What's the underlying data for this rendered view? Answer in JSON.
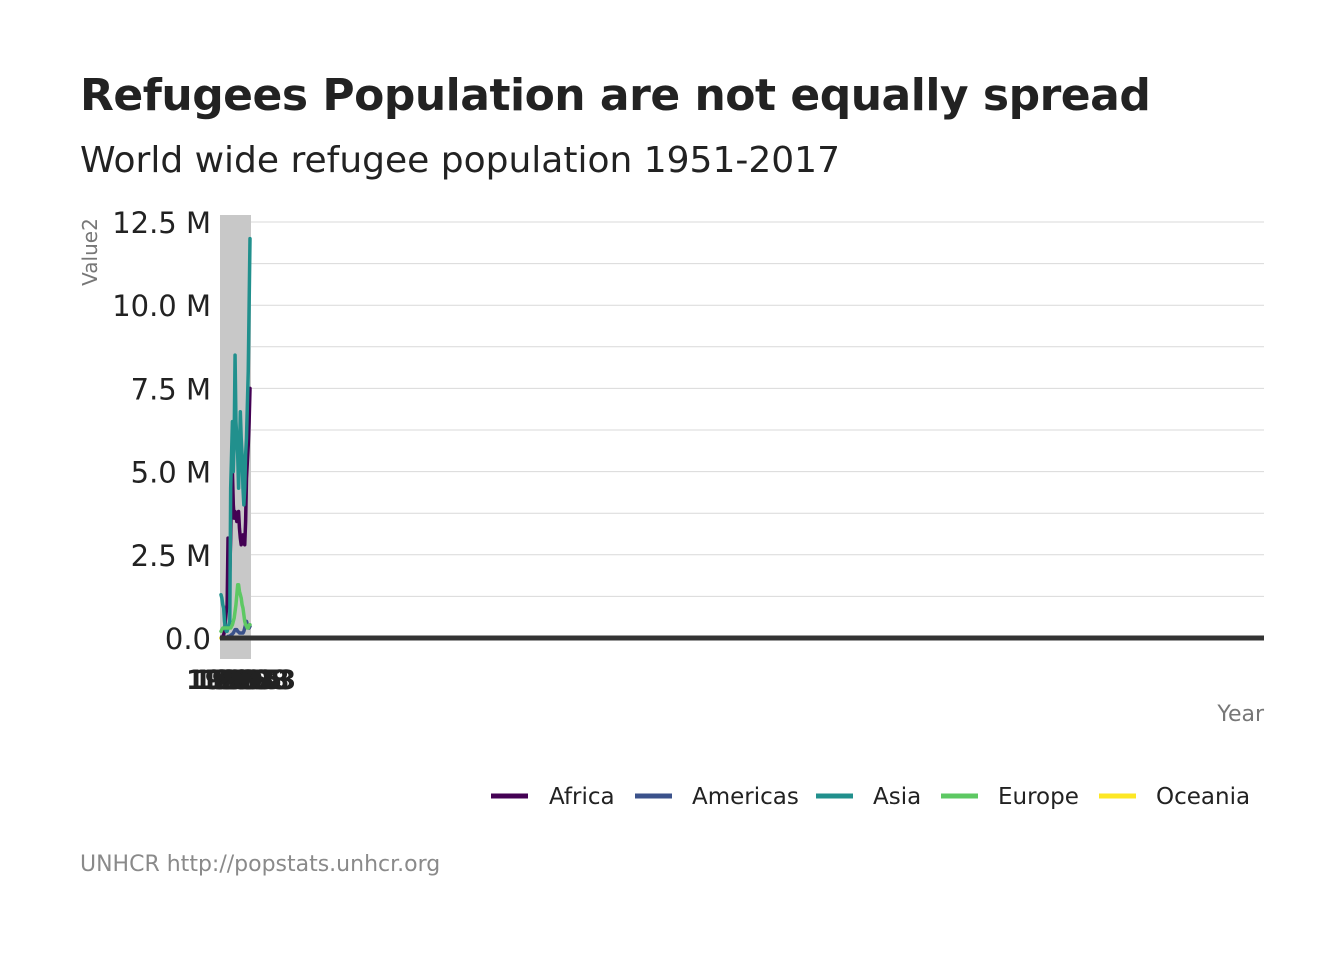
{
  "title": "Refugees Population are not equally spread",
  "subtitle": "World wide refugee population 1951-2017",
  "caption": "UNHCR http://popstats.unhcr.org",
  "colors": {
    "Africa": "#440154",
    "Americas": "#3b528b",
    "Asia": "#21908d",
    "Europe": "#5dc863",
    "Oceania": "#fde725",
    "highlight": "#c8c8c8",
    "axis": "#333333",
    "grid": "#d9d9d9",
    "text": "#222222",
    "muted": "#777777"
  },
  "chart_data": {
    "type": "line",
    "xlabel": "Year",
    "ylabel": "Value2",
    "x_tick_labels_overlapping": [
      "1951",
      "1965",
      "1983",
      "1995",
      "2008",
      "2013"
    ],
    "ylim": [
      0,
      12500000
    ],
    "y_ticks": [
      0,
      2500000,
      5000000,
      7500000,
      10000000,
      12500000
    ],
    "y_tick_labels": [
      "0.0",
      "2.5 M",
      "5.0 M",
      "7.5 M",
      "10.0 M",
      "12.5 M"
    ],
    "grid": true,
    "legend_position": "bottom-right",
    "highlight_band_note": "grey shaded band behind the compressed data region",
    "x_domain": [
      1951,
      5000
    ],
    "x": [
      1951,
      1953,
      1955,
      1957,
      1959,
      1961,
      1963,
      1965,
      1967,
      1969,
      1971,
      1973,
      1975,
      1977,
      1979,
      1981,
      1983,
      1985,
      1987,
      1989,
      1991,
      1993,
      1995,
      1997,
      1999,
      2001,
      2003,
      2005,
      2007,
      2009,
      2011,
      2013,
      2015,
      2017
    ],
    "series": [
      {
        "name": "Africa",
        "values": [
          0,
          0,
          50000,
          100000,
          200000,
          500000,
          800000,
          1000000,
          3000000,
          2500000,
          2000000,
          3000000,
          4500000,
          5000000,
          4000000,
          3600000,
          3800000,
          3700000,
          3500000,
          3600000,
          3800000,
          3300000,
          3000000,
          2800000,
          2900000,
          3100000,
          3000000,
          2800000,
          3500000,
          4800000,
          5300000,
          5800000,
          6500000,
          7500000
        ]
      },
      {
        "name": "Americas",
        "values": [
          0,
          0,
          0,
          0,
          0,
          0,
          0,
          0,
          50000,
          50000,
          60000,
          80000,
          100000,
          120000,
          150000,
          200000,
          250000,
          250000,
          250000,
          200000,
          180000,
          150000,
          150000,
          150000,
          150000,
          150000,
          200000,
          300000,
          400000,
          500000,
          400000,
          350000,
          300000,
          350000
        ]
      },
      {
        "name": "Asia",
        "values": [
          1300000,
          1200000,
          1000000,
          900000,
          500000,
          300000,
          200000,
          200000,
          300000,
          400000,
          500000,
          4500000,
          5500000,
          6500000,
          5000000,
          6000000,
          8500000,
          6500000,
          6000000,
          5500000,
          4500000,
          5500000,
          6800000,
          6000000,
          5500000,
          4500000,
          4000000,
          4500000,
          5500000,
          6000000,
          7000000,
          8000000,
          10000000,
          12000000
        ]
      },
      {
        "name": "Europe",
        "values": [
          200000,
          250000,
          300000,
          300000,
          300000,
          300000,
          300000,
          300000,
          300000,
          300000,
          300000,
          300000,
          350000,
          400000,
          500000,
          600000,
          800000,
          1000000,
          1300000,
          1600000,
          1600000,
          1400000,
          1300000,
          1200000,
          1000000,
          900000,
          700000,
          500000,
          400000,
          350000,
          300000,
          300000,
          400000,
          400000
        ]
      },
      {
        "name": "Oceania",
        "values": [
          0,
          0,
          0,
          0,
          0,
          0,
          0,
          0,
          0,
          0,
          0,
          0,
          0,
          0,
          0,
          0,
          0,
          0,
          0,
          0,
          0,
          0,
          0,
          0,
          0,
          0,
          0,
          0,
          0,
          0,
          0,
          0,
          0,
          0
        ]
      }
    ]
  }
}
